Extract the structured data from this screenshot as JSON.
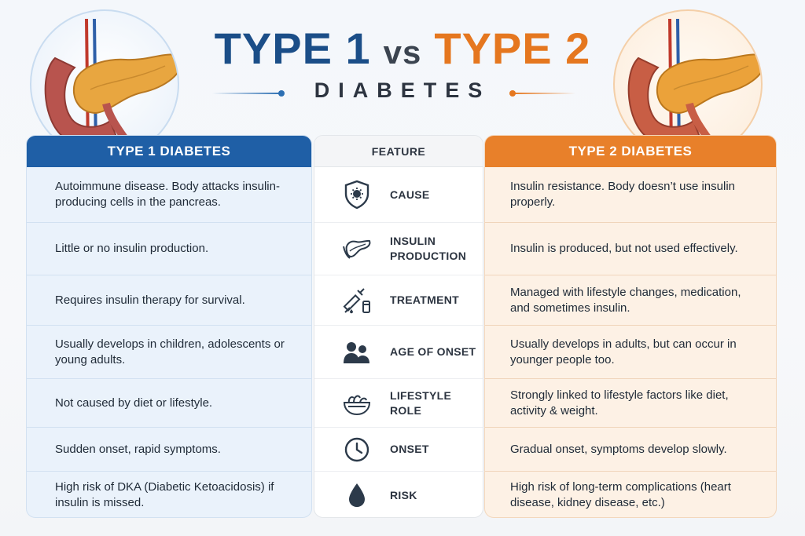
{
  "header": {
    "title_left": "TYPE 1",
    "title_vs": "vs",
    "title_right": "TYPE 2",
    "subtitle": "DIABETES"
  },
  "columns": {
    "type1_heading": "TYPE 1 DIABETES",
    "feature_heading": "FEATURE",
    "type2_heading": "TYPE 2 DIABETES"
  },
  "rows": [
    {
      "feature": "CAUSE",
      "icon": "shield-virus-icon",
      "type1": "Autoimmune disease. Body attacks insulin-producing cells in the pancreas.",
      "type2": "Insulin resistance. Body doesn’t use insulin properly."
    },
    {
      "feature": "INSULIN PRODUCTION",
      "icon": "pancreas-icon",
      "type1": "Little or no insulin production.",
      "type2": "Insulin is produced, but not used effectively."
    },
    {
      "feature": "TREATMENT",
      "icon": "syringe-vial-icon",
      "type1": "Requires insulin therapy for survival.",
      "type2": "Managed with lifestyle changes, medication, and sometimes insulin."
    },
    {
      "feature": "AGE OF ONSET",
      "icon": "people-icon",
      "type1": "Usually develops in children, adolescents or young adults.",
      "type2": "Usually develops in adults, but can occur in younger people too."
    },
    {
      "feature": "LIFESTYLE ROLE",
      "icon": "salad-bowl-icon",
      "type1": "Not caused by diet or lifestyle.",
      "type2": "Strongly linked to lifestyle factors like diet, activity & weight."
    },
    {
      "feature": "ONSET",
      "icon": "clock-icon",
      "type1": "Sudden onset, rapid symptoms.",
      "type2": "Gradual onset, symptoms develop slowly."
    },
    {
      "feature": "RISK",
      "icon": "drop-icon",
      "type1": "High risk of DKA (Diabetic Ketoacidosis) if insulin is missed.",
      "type2": "High risk of long-term complications (heart disease, kidney disease, etc.)"
    }
  ],
  "colors": {
    "type1_blue": "#1f5fa6",
    "type2_orange": "#e8802a",
    "title_blue": "#1b4e88",
    "title_orange": "#e5771f",
    "icon_dark": "#2c3a4a"
  }
}
